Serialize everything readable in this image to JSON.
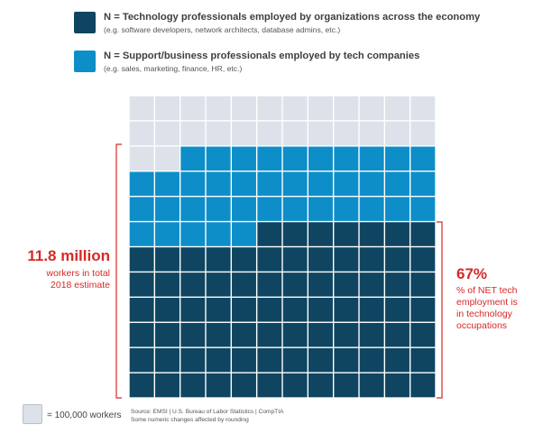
{
  "legend": [
    {
      "title": "N = Technology professionals employed by organizations across the economy",
      "subtitle": "(e.g. software developers, network architects, database admins, etc.)",
      "color": "#0f4561",
      "icon": "dark-square"
    },
    {
      "title": "N = Support/business professionals employed by tech companies",
      "subtitle": "(e.g. sales, marketing, finance, HR, etc.)",
      "color": "#0d8ec9",
      "icon": "light-blue-square"
    }
  ],
  "left_annotation": {
    "value": "11.8 million",
    "line1": "workers in total",
    "line2": "2018 estimate"
  },
  "right_annotation": {
    "value": "67%",
    "line1": "% of NET tech",
    "line2": "employment is",
    "line3": "in technology",
    "line4": "occupations"
  },
  "footer": {
    "unit_text": "= 100,000 workers",
    "source": "Source: EMSI | U.S. Bureau of Labor Statistics | CompTIA",
    "note": "Some numeric changes affected by rounding"
  },
  "chart_data": {
    "type": "waffle",
    "rows": 12,
    "cols": 12,
    "unit": "100,000 workers",
    "series": [
      {
        "name": "Technology professionals employed by organizations across the economy",
        "cells": 79,
        "color": "#0f4561"
      },
      {
        "name": "Support/business professionals employed by tech companies",
        "cells": 39,
        "color": "#0d8ec9"
      },
      {
        "cells": 26,
        "color": "#dde2ea"
      }
    ]
  }
}
